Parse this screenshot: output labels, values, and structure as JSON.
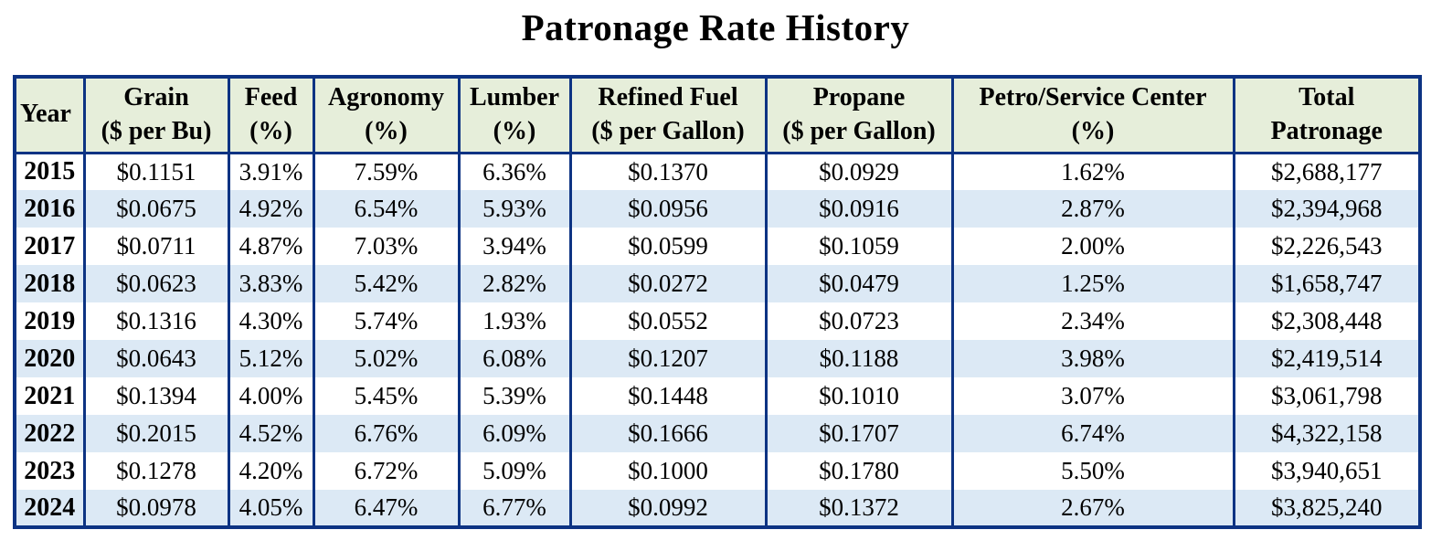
{
  "title": "Patronage Rate History",
  "colors": {
    "border": "#0d3383",
    "header_bg": "#e6eeda",
    "stripe_bg": "#dce9f5",
    "row_bg": "#ffffff",
    "text": "#000000"
  },
  "chart_data": {
    "type": "table",
    "title": "Patronage Rate History",
    "columns": [
      {
        "id": "year",
        "line1": "Year",
        "line2": ""
      },
      {
        "id": "grain",
        "line1": "Grain",
        "line2": "($ per Bu)"
      },
      {
        "id": "feed",
        "line1": "Feed",
        "line2": "(%)"
      },
      {
        "id": "agronomy",
        "line1": "Agronomy",
        "line2": "(%)"
      },
      {
        "id": "lumber",
        "line1": "Lumber",
        "line2": "(%)"
      },
      {
        "id": "refined_fuel",
        "line1": "Refined Fuel",
        "line2": "($ per Gallon)"
      },
      {
        "id": "propane",
        "line1": "Propane",
        "line2": "($ per Gallon)"
      },
      {
        "id": "petro",
        "line1": "Petro/Service Center",
        "line2": "(%)"
      },
      {
        "id": "total",
        "line1": "Total",
        "line2": "Patronage"
      }
    ],
    "rows": [
      [
        "2015",
        "$0.1151",
        "3.91%",
        "7.59%",
        "6.36%",
        "$0.1370",
        "$0.0929",
        "1.62%",
        "$2,688,177"
      ],
      [
        "2016",
        "$0.0675",
        "4.92%",
        "6.54%",
        "5.93%",
        "$0.0956",
        "$0.0916",
        "2.87%",
        "$2,394,968"
      ],
      [
        "2017",
        "$0.0711",
        "4.87%",
        "7.03%",
        "3.94%",
        "$0.0599",
        "$0.1059",
        "2.00%",
        "$2,226,543"
      ],
      [
        "2018",
        "$0.0623",
        "3.83%",
        "5.42%",
        "2.82%",
        "$0.0272",
        "$0.0479",
        "1.25%",
        "$1,658,747"
      ],
      [
        "2019",
        "$0.1316",
        "4.30%",
        "5.74%",
        "1.93%",
        "$0.0552",
        "$0.0723",
        "2.34%",
        "$2,308,448"
      ],
      [
        "2020",
        "$0.0643",
        "5.12%",
        "5.02%",
        "6.08%",
        "$0.1207",
        "$0.1188",
        "3.98%",
        "$2,419,514"
      ],
      [
        "2021",
        "$0.1394",
        "4.00%",
        "5.45%",
        "5.39%",
        "$0.1448",
        "$0.1010",
        "3.07%",
        "$3,061,798"
      ],
      [
        "2022",
        "$0.2015",
        "4.52%",
        "6.76%",
        "6.09%",
        "$0.1666",
        "$0.1707",
        "6.74%",
        "$4,322,158"
      ],
      [
        "2023",
        "$0.1278",
        "4.20%",
        "6.72%",
        "5.09%",
        "$0.1000",
        "$0.1780",
        "5.50%",
        "$3,940,651"
      ],
      [
        "2024",
        "$0.0978",
        "4.05%",
        "6.47%",
        "6.77%",
        "$0.0992",
        "$0.1372",
        "2.67%",
        "$3,825,240"
      ]
    ]
  }
}
